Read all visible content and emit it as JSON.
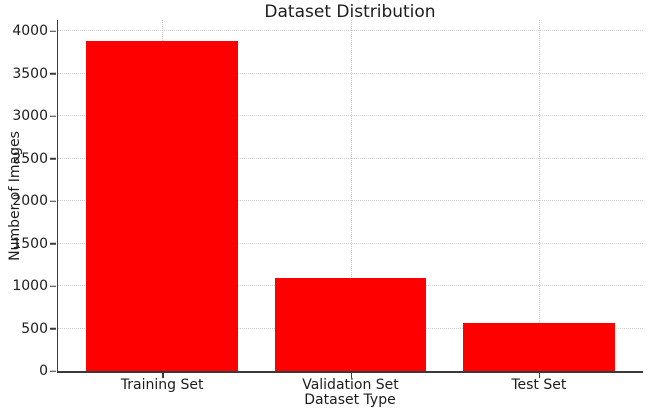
{
  "figure": {
    "background": "#ffffff"
  },
  "chart_data": {
    "type": "bar",
    "title": "Dataset Distribution",
    "xlabel": "Dataset Type",
    "ylabel": "Number of Images",
    "categories": [
      "Training Set",
      "Validation Set",
      "Test Set"
    ],
    "values": [
      3880,
      1100,
      560
    ],
    "yticks": [
      0,
      500,
      1000,
      1500,
      2000,
      2500,
      3000,
      3500,
      4000
    ],
    "ylim": [
      0,
      4130
    ],
    "bar_color": "#ff0000",
    "axis_color": "#3a3a3a",
    "grid_color": "#cfcfcf",
    "text_color": "#1c1c1c",
    "grid": "both",
    "legend_position": "none"
  }
}
